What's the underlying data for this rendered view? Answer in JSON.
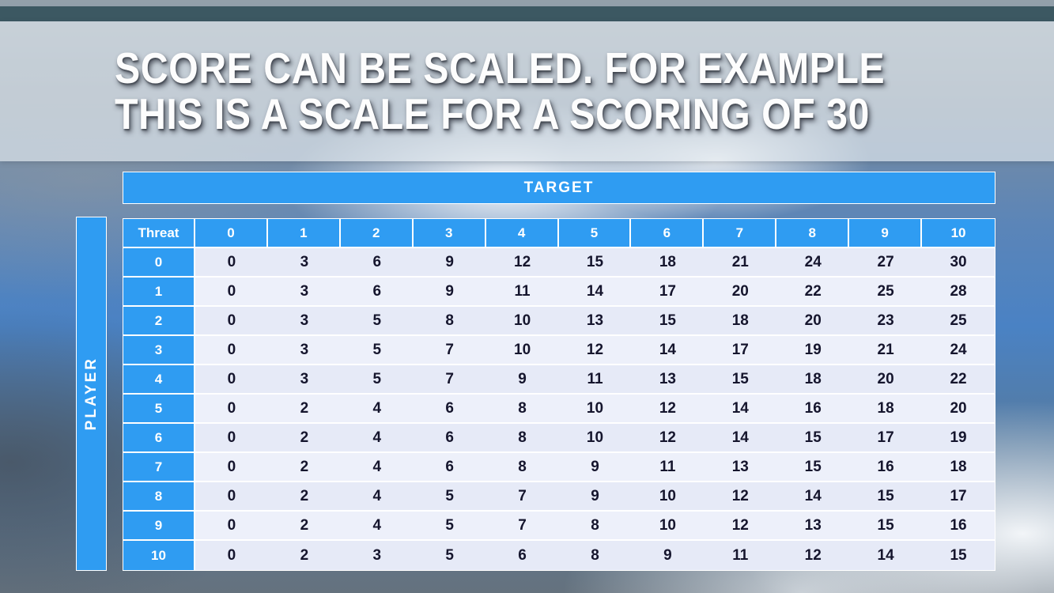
{
  "slide": {
    "title_line1": "SCORE CAN BE SCALED. FOR EXAMPLE",
    "title_line2": "THIS IS A SCALE FOR A SCORING OF 30"
  },
  "table": {
    "target_label": "TARGET",
    "player_label": "PLAYER",
    "corner_label": "Threat",
    "col_headers": [
      "0",
      "1",
      "2",
      "3",
      "4",
      "5",
      "6",
      "7",
      "8",
      "9",
      "10"
    ],
    "rows": [
      {
        "header": "0",
        "values": [
          0,
          3,
          6,
          9,
          12,
          15,
          18,
          21,
          24,
          27,
          30
        ]
      },
      {
        "header": "1",
        "values": [
          0,
          3,
          6,
          9,
          11,
          14,
          17,
          20,
          22,
          25,
          28
        ]
      },
      {
        "header": "2",
        "values": [
          0,
          3,
          5,
          8,
          10,
          13,
          15,
          18,
          20,
          23,
          25
        ]
      },
      {
        "header": "3",
        "values": [
          0,
          3,
          5,
          7,
          10,
          12,
          14,
          17,
          19,
          21,
          24
        ]
      },
      {
        "header": "4",
        "values": [
          0,
          3,
          5,
          7,
          9,
          11,
          13,
          15,
          18,
          20,
          22
        ]
      },
      {
        "header": "5",
        "values": [
          0,
          2,
          4,
          6,
          8,
          10,
          12,
          14,
          16,
          18,
          20
        ]
      },
      {
        "header": "6",
        "values": [
          0,
          2,
          4,
          6,
          8,
          10,
          12,
          14,
          15,
          17,
          19
        ]
      },
      {
        "header": "7",
        "values": [
          0,
          2,
          4,
          6,
          8,
          9,
          11,
          13,
          15,
          16,
          18
        ]
      },
      {
        "header": "8",
        "values": [
          0,
          2,
          4,
          5,
          7,
          9,
          10,
          12,
          14,
          15,
          17
        ]
      },
      {
        "header": "9",
        "values": [
          0,
          2,
          4,
          5,
          7,
          8,
          10,
          12,
          13,
          15,
          16
        ]
      },
      {
        "header": "10",
        "values": [
          0,
          2,
          3,
          5,
          6,
          8,
          9,
          11,
          12,
          14,
          15
        ]
      }
    ]
  },
  "colors": {
    "header_blue": "#2f9cf2",
    "band_even": "#e6eaf7",
    "band_odd": "#edf0fa",
    "top_bar": "#3c5862",
    "cell_text": "#15152d"
  }
}
